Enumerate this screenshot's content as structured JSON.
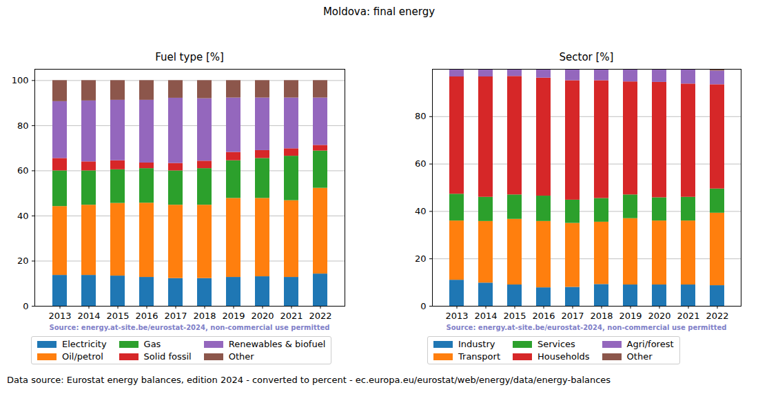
{
  "suptitle": "Moldova: final energy",
  "caption": "Data source: Eurostat energy balances, edition 2024 - converted to percent - ec.europa.eu/eurostat/web/energy/data/energy-balances",
  "chart_data": [
    {
      "type": "bar",
      "title": "Fuel type [%]",
      "stacked": true,
      "grid": true,
      "legend": "bottom",
      "annotation": "Source: energy.at-site.be/eurostat-2024, non-commercial use permitted",
      "categories": [
        "2013",
        "2014",
        "2015",
        "2016",
        "2017",
        "2018",
        "2019",
        "2020",
        "2021",
        "2022"
      ],
      "series": [
        {
          "name": "Electricity",
          "color": "#1f77b4",
          "values": [
            13.7,
            13.7,
            13.4,
            12.8,
            12.3,
            12.3,
            12.8,
            13.1,
            12.8,
            14.3
          ]
        },
        {
          "name": "Oil/petrol",
          "color": "#ff7f0e",
          "values": [
            30.5,
            31.1,
            32.2,
            32.9,
            32.5,
            32.5,
            35.0,
            34.7,
            34.0,
            38.0
          ]
        },
        {
          "name": "Gas",
          "color": "#2ca02c",
          "values": [
            15.8,
            15.2,
            14.9,
            15.3,
            15.2,
            16.2,
            16.7,
            17.7,
            19.7,
            16.5
          ]
        },
        {
          "name": "Solid fossil",
          "color": "#d62728",
          "values": [
            5.5,
            4.0,
            4.0,
            2.5,
            3.3,
            3.3,
            3.7,
            3.5,
            3.3,
            2.5
          ]
        },
        {
          "name": "Renewables & biofuel",
          "color": "#9467bd",
          "values": [
            25.2,
            27.0,
            26.8,
            27.8,
            28.9,
            27.7,
            24.1,
            23.3,
            22.5,
            21.0
          ]
        },
        {
          "name": "Other",
          "color": "#8c564b",
          "values": [
            9.3,
            9.0,
            8.7,
            8.7,
            7.8,
            8.0,
            7.7,
            7.7,
            7.7,
            7.7
          ]
        }
      ],
      "ylim": [
        0,
        105
      ],
      "yticks": [
        0,
        20,
        40,
        60,
        80,
        100
      ]
    },
    {
      "type": "bar",
      "title": "Sector [%]",
      "stacked": true,
      "grid": true,
      "legend": "bottom",
      "annotation": "Source: energy.at-site.be/eurostat-2024, non-commercial use permitted",
      "categories": [
        "2013",
        "2014",
        "2015",
        "2016",
        "2017",
        "2018",
        "2019",
        "2020",
        "2021",
        "2022"
      ],
      "series": [
        {
          "name": "Industry",
          "color": "#1f77b4",
          "values": [
            11.0,
            9.8,
            9.0,
            7.8,
            8.0,
            9.2,
            9.0,
            9.0,
            9.0,
            8.7
          ]
        },
        {
          "name": "Transport",
          "color": "#ff7f0e",
          "values": [
            25.0,
            26.0,
            27.7,
            28.0,
            27.0,
            26.3,
            28.0,
            27.0,
            27.0,
            30.6
          ]
        },
        {
          "name": "Services",
          "color": "#2ca02c",
          "values": [
            11.3,
            10.2,
            10.3,
            10.7,
            9.8,
            10.0,
            10.0,
            9.8,
            10.0,
            10.2
          ]
        },
        {
          "name": "Households",
          "color": "#d62728",
          "values": [
            49.5,
            50.8,
            50.0,
            49.8,
            50.4,
            49.7,
            47.7,
            48.7,
            47.8,
            44.0
          ]
        },
        {
          "name": "Agri/forest",
          "color": "#9467bd",
          "values": [
            3.2,
            3.2,
            3.0,
            3.7,
            4.8,
            4.8,
            5.3,
            5.3,
            6.0,
            5.8
          ]
        },
        {
          "name": "Other",
          "color": "#8c564b",
          "values": [
            0,
            0,
            0,
            0,
            0,
            0,
            0,
            0.2,
            0.2,
            0.7
          ]
        }
      ],
      "ylim": [
        0,
        100
      ],
      "yticks": [
        0,
        20,
        40,
        60,
        80
      ]
    }
  ]
}
